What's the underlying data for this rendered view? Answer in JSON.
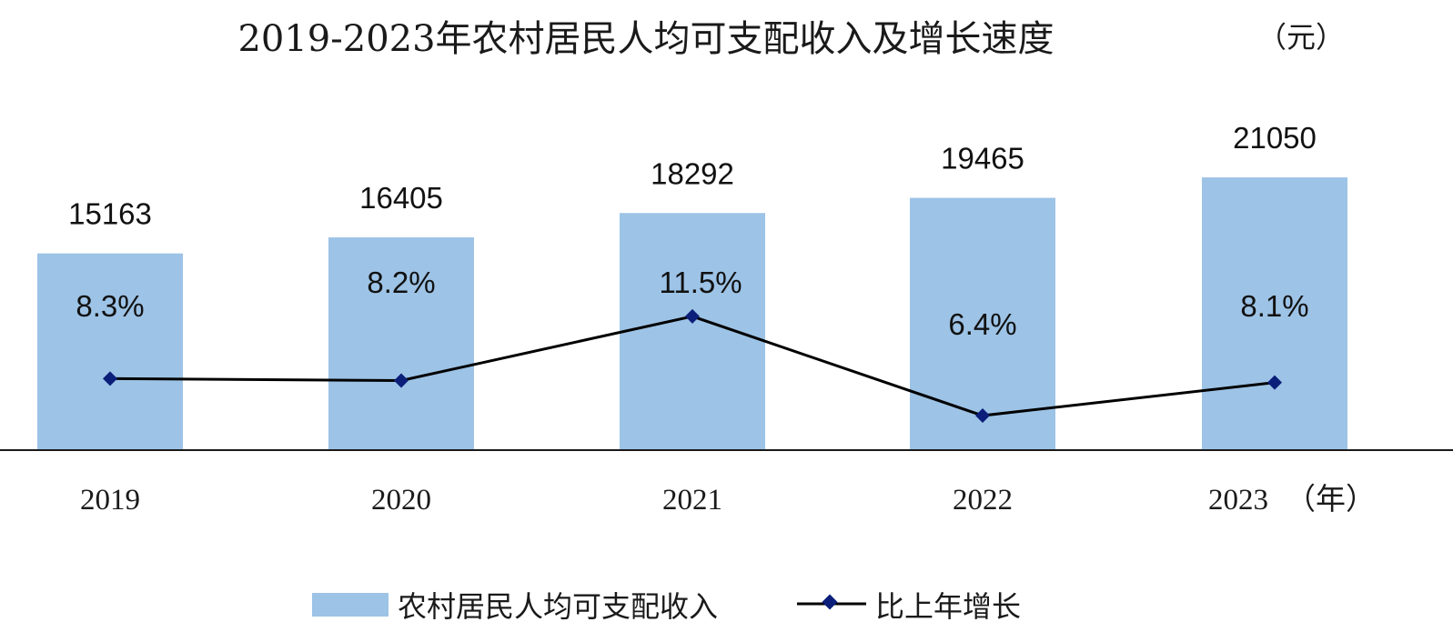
{
  "chart_data": {
    "type": "bar",
    "title": "2019-2023年农村居民人均可支配收入及增长速度",
    "unit_label": "（元）",
    "x_unit_suffix": "（年）",
    "categories": [
      "2019",
      "2020",
      "2021",
      "2022",
      "2023"
    ],
    "series": [
      {
        "name": "农村居民人均可支配收入",
        "kind": "bar",
        "values": [
          15163,
          16405,
          18292,
          19465,
          21050
        ],
        "value_labels": [
          "15163",
          "16405",
          "18292",
          "19465",
          "21050"
        ],
        "color": "#9dc3e6"
      },
      {
        "name": "比上年增长",
        "kind": "line",
        "unit": "%",
        "values": [
          8.3,
          8.2,
          11.5,
          6.4,
          8.1
        ],
        "value_labels": [
          "8.3%",
          "8.2%",
          "11.5%",
          "6.4%",
          "8.1%"
        ],
        "color": "#000000",
        "marker_color": "#0b1f7a"
      }
    ],
    "ylim": [
      0,
      24000
    ],
    "y2lim": [
      0,
      34
    ],
    "grid": false,
    "legend_position": "bottom"
  }
}
